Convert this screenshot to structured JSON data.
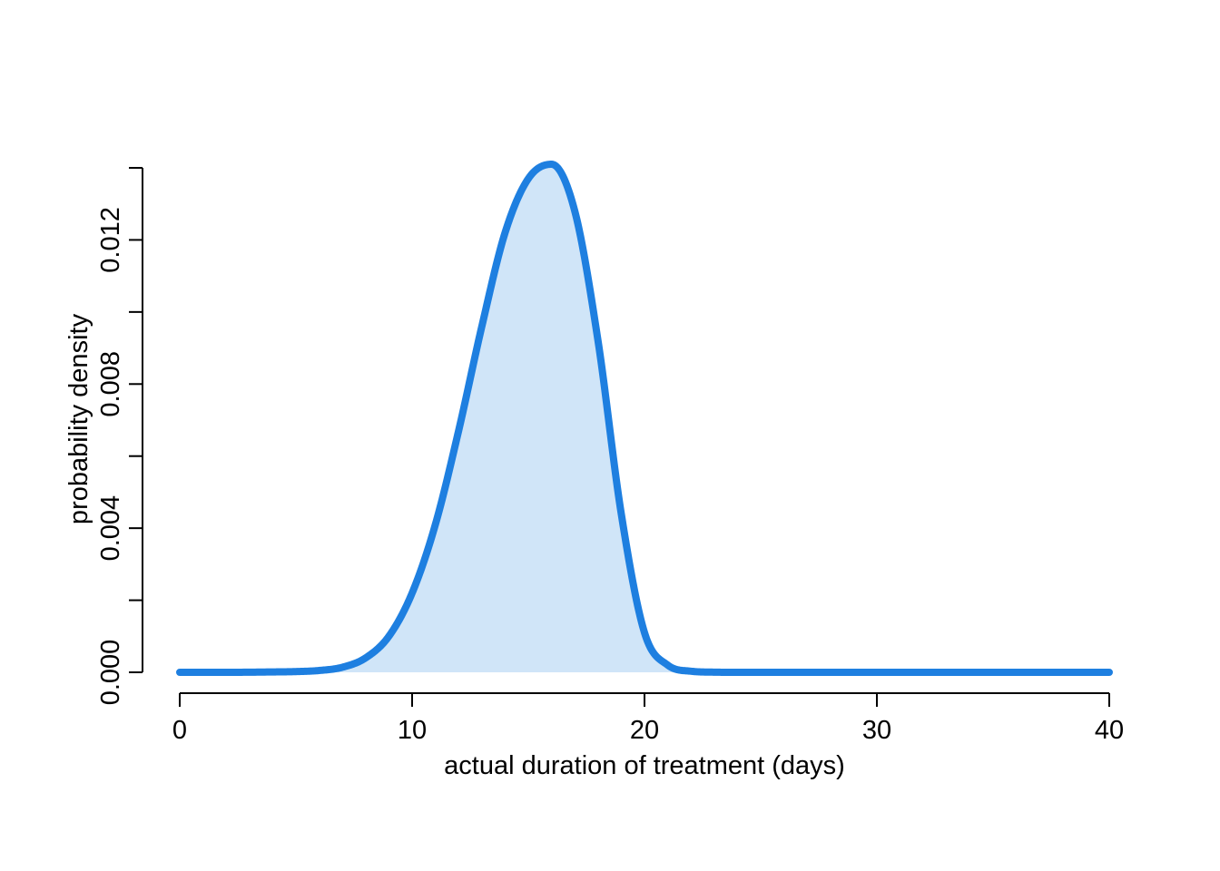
{
  "chart_data": {
    "type": "area",
    "xlabel": "actual duration of treatment (days)",
    "ylabel": "probability density",
    "xlim": [
      0,
      40
    ],
    "ylim": [
      0,
      0.014
    ],
    "x_ticks": [
      0,
      10,
      20,
      30,
      40
    ],
    "x_tick_labels": [
      "0",
      "10",
      "20",
      "30",
      "40"
    ],
    "y_ticks": [
      0,
      0.002,
      0.004,
      0.006,
      0.008,
      0.01,
      0.012,
      0.014
    ],
    "y_tick_labels": [
      "0.000",
      "",
      "0.004",
      "",
      "0.008",
      "",
      "0.012",
      ""
    ],
    "grid": false,
    "shaded_region": [
      0,
      22
    ],
    "colors": {
      "line": "#1e7fe0",
      "fill": "#d0e5f8",
      "axis": "#000000"
    },
    "series": [
      {
        "x": [
          0,
          2,
          4,
          5,
          6,
          7,
          8,
          9,
          10,
          11,
          12,
          13,
          14,
          15,
          16,
          17,
          18,
          19,
          20,
          21,
          22,
          23,
          24,
          26,
          30,
          35,
          40
        ],
        "y": [
          0.0,
          0.0,
          1e-05,
          2e-05,
          5e-05,
          0.00014,
          0.0004,
          0.001,
          0.0022,
          0.0041,
          0.0067,
          0.0096,
          0.0122,
          0.0137,
          0.0141,
          0.0128,
          0.0092,
          0.0044,
          0.0011,
          0.0002,
          3e-05,
          4e-06,
          0.0,
          0.0,
          0.0,
          0.0,
          0.0
        ]
      }
    ]
  }
}
